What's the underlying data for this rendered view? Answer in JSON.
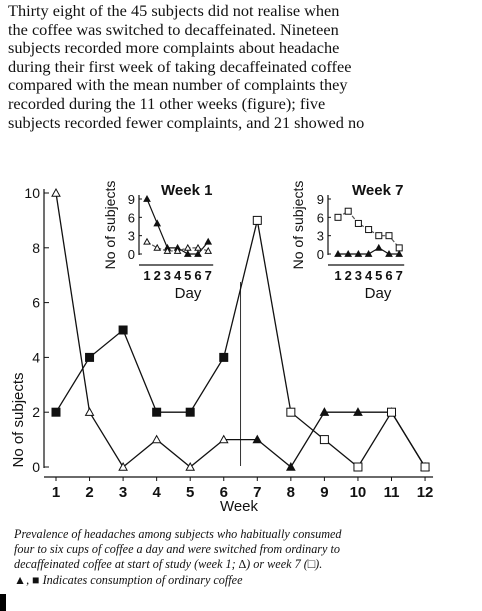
{
  "paragraph_lines": [
    "Thirty eight of the 45 subjects did not realise when",
    "the coffee was switched to decaffeinated. Nineteen",
    "subjects recorded more complaints about headache",
    "during their first week of taking decaffeinated coffee",
    "compared with the mean number of complaints they",
    "recorded during the 11 other weeks (figure); five",
    "subjects recorded fewer complaints, and 21 showed no"
  ],
  "caption_lines": [
    "Prevalence of headaches among subjects who habitually consumed",
    "four to six cups of coffee a day and were switched from ordinary to",
    "decaffeinated coffee at start of study (week 1; ∆) or week 7 (□).",
    "▲, ■ Indicates consumption of ordinary coffee"
  ],
  "chart_data": [
    {
      "type": "line",
      "xlabel": "Week",
      "ylabel": "No of subjects",
      "x": [
        1,
        2,
        3,
        4,
        5,
        6,
        7,
        8,
        9,
        10,
        11,
        12
      ],
      "xlim": [
        1,
        12
      ],
      "ylim": [
        0,
        10
      ],
      "yticks": [
        0,
        2,
        4,
        6,
        8,
        10
      ],
      "series": [
        {
          "marker": "triangle",
          "values": [
            10,
            2,
            0,
            1,
            0,
            1,
            1,
            0,
            2,
            2,
            2,
            0
          ]
        },
        {
          "marker": "square",
          "values": [
            2,
            4,
            5,
            2,
            2,
            4,
            9,
            2,
            1,
            0,
            2,
            0
          ]
        }
      ],
      "switch_marker_x": 6.5
    },
    {
      "type": "line",
      "title": "Week 1",
      "xlabel": "Day",
      "ylabel": "No of subjects",
      "x": [
        1,
        2,
        3,
        4,
        5,
        6,
        7
      ],
      "xticklabels": "1234567",
      "ylim": [
        0,
        9
      ],
      "yticks": [
        0,
        3,
        6,
        9
      ],
      "series": [
        {
          "marker": "triangle",
          "values": [
            9,
            5,
            1,
            1,
            0,
            0,
            2
          ]
        },
        {
          "marker": "triangle-open",
          "values": [
            2,
            1,
            0.5,
            0.5,
            1,
            1,
            0.5
          ]
        }
      ]
    },
    {
      "type": "line",
      "title": "Week 7",
      "xlabel": "Day",
      "ylabel": "No of subjects",
      "x": [
        1,
        2,
        3,
        4,
        5,
        6,
        7
      ],
      "xticklabels": "1234567",
      "ylim": [
        0,
        9
      ],
      "yticks": [
        0,
        3,
        6,
        9
      ],
      "series": [
        {
          "marker": "square-open",
          "values": [
            6,
            7,
            5,
            4,
            3,
            3,
            1
          ]
        },
        {
          "marker": "triangle",
          "values": [
            0,
            0,
            0,
            0,
            1,
            0,
            0
          ]
        }
      ]
    }
  ]
}
